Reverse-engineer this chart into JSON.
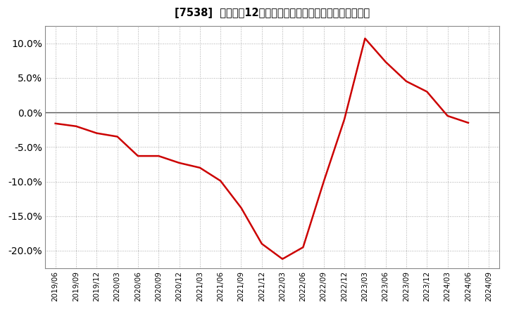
{
  "title": "[7538]  売上高の12か月移動合計の対前年同期増減率の推移",
  "line_color": "#cc0000",
  "background_color": "#ffffff",
  "plot_bg_color": "#ffffff",
  "grid_color": "#aaaaaa",
  "zero_line_color": "#555555",
  "ylim": [
    -0.225,
    0.125
  ],
  "yticks": [
    -0.2,
    -0.15,
    -0.1,
    -0.05,
    0.0,
    0.05,
    0.1
  ],
  "x_labels": [
    "2019/06",
    "2019/09",
    "2019/12",
    "2020/03",
    "2020/06",
    "2020/09",
    "2020/12",
    "2021/03",
    "2021/06",
    "2021/09",
    "2021/12",
    "2022/03",
    "2022/06",
    "2022/09",
    "2022/12",
    "2023/03",
    "2023/06",
    "2023/09",
    "2023/12",
    "2024/03",
    "2024/06",
    "2024/09"
  ],
  "data_x": [
    "2019/06",
    "2019/09",
    "2019/12",
    "2020/03",
    "2020/06",
    "2020/09",
    "2020/12",
    "2021/03",
    "2021/06",
    "2021/09",
    "2021/12",
    "2022/03",
    "2022/06",
    "2022/09",
    "2022/12",
    "2023/03",
    "2023/06",
    "2023/09",
    "2023/12",
    "2024/03",
    "2024/06"
  ],
  "data_y": [
    -0.016,
    -0.02,
    -0.03,
    -0.035,
    -0.063,
    -0.063,
    -0.073,
    -0.08,
    -0.099,
    -0.138,
    -0.19,
    -0.212,
    -0.195,
    -0.1,
    -0.01,
    0.107,
    0.073,
    0.045,
    0.03,
    -0.005,
    -0.015
  ]
}
